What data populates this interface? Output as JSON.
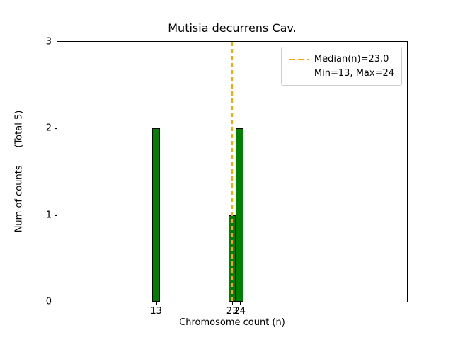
{
  "chart_data": {
    "type": "bar",
    "title": "Mutisia decurrens Cav.",
    "xlabel": "Chromosome count (n)",
    "ylabel": "Num of counts      (Total 5)",
    "categories": [
      13,
      23,
      24
    ],
    "values": [
      2,
      1,
      2
    ],
    "total_counts": 5,
    "xlim": [
      0,
      46
    ],
    "ylim": [
      0,
      3
    ],
    "xticks": [
      13,
      23,
      24
    ],
    "yticks": [
      0,
      1,
      2,
      3
    ],
    "bar_color": "#008000",
    "bar_edge_color": "#000000",
    "median_line": {
      "x": 23.0,
      "color": "#ffa500",
      "style": "dashed"
    },
    "legend": {
      "position": "upper right",
      "entries": [
        "Median(n)=23.0",
        "Min=13, Max=24"
      ]
    },
    "grid": false
  }
}
